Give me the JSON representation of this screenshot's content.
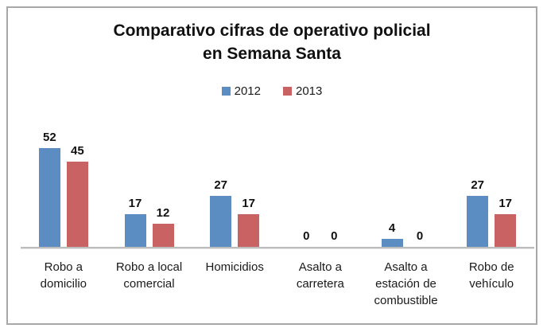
{
  "title_lines": [
    "Comparativo cifras de operativo policial",
    "en Semana Santa"
  ],
  "colors": {
    "series_2012": "#5B8DC3",
    "series_2013": "#C96262",
    "frame_border": "#A8A8A8",
    "axis_line": "#BCBCBC",
    "text": "#111111"
  },
  "chart_data": {
    "type": "bar",
    "title": "Comparativo cifras de operativo policial en Semana Santa",
    "categories": [
      "Robo a domicilio",
      "Robo a local comercial",
      "Homicidios",
      "Asalto a carretera",
      "Asalto a estación de combustible",
      "Robo de vehículo"
    ],
    "series": [
      {
        "name": "2012",
        "color": "#5B8DC3",
        "values": [
          52,
          17,
          27,
          0,
          4,
          27
        ]
      },
      {
        "name": "2013",
        "color": "#C96262",
        "values": [
          45,
          12,
          17,
          0,
          0,
          17
        ]
      }
    ],
    "legend_position": "top",
    "grid": false,
    "data_labels": true,
    "xlabel": "",
    "ylabel": "",
    "ylim": [
      0,
      60
    ]
  }
}
